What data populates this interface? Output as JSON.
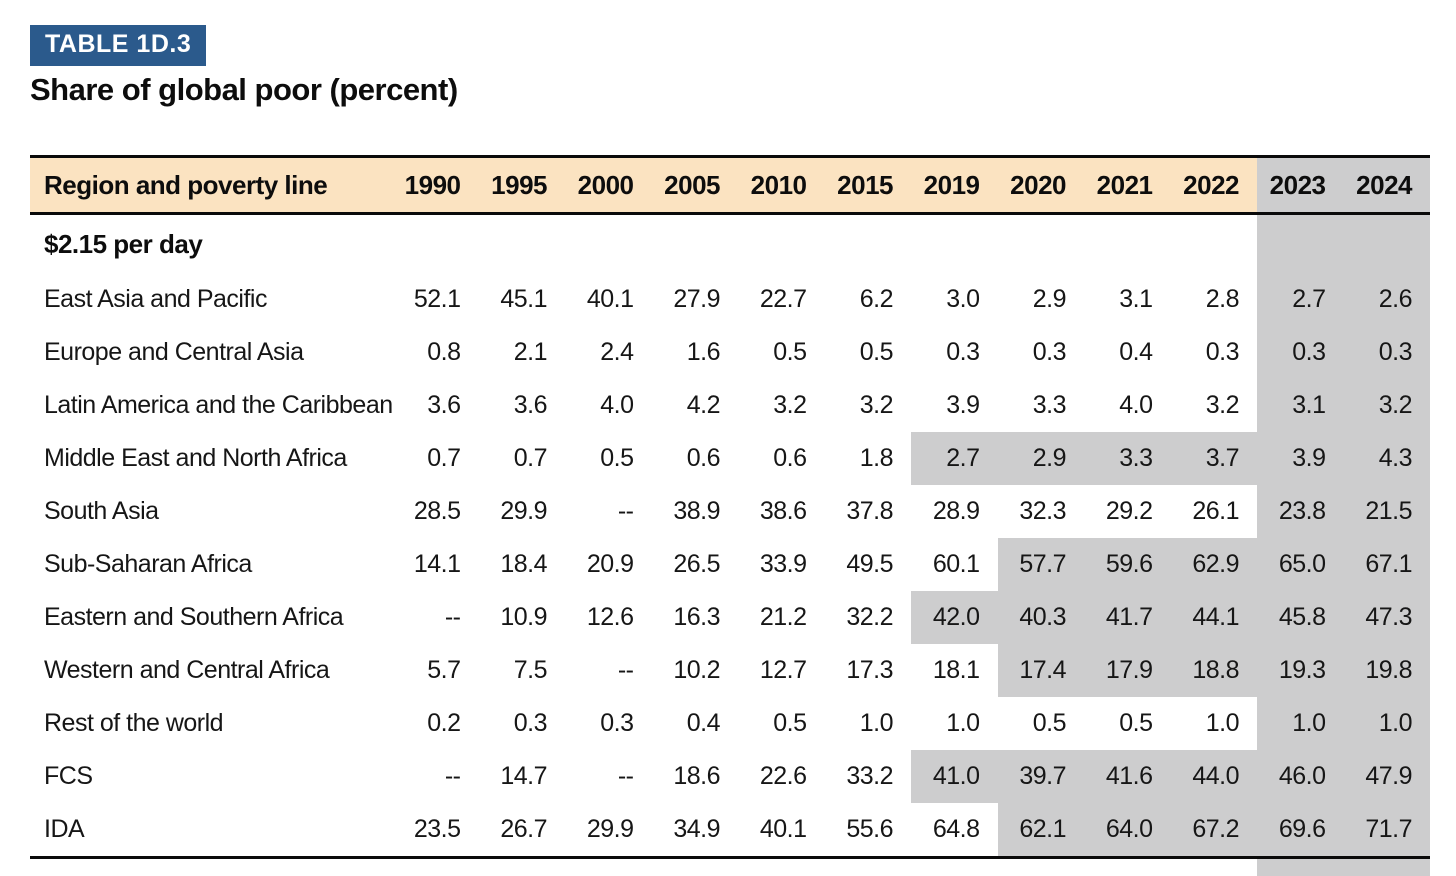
{
  "badge": {
    "label": "TABLE 1D.3"
  },
  "title": "Share of global poor (percent)",
  "colors": {
    "badge_bg": "#2B5A8C",
    "header_bg": "#FBE3C1",
    "highlight_bg": "#CDCDCE",
    "border": "#0a0a0a"
  },
  "table": {
    "header": {
      "label_col": "Region and poverty line",
      "years": [
        "1990",
        "1995",
        "2000",
        "2005",
        "2010",
        "2015",
        "2019",
        "2020",
        "2021",
        "2022",
        "2023",
        "2024"
      ]
    },
    "highlight_from_index": 10,
    "section": {
      "label": "$2.15 per day"
    },
    "rows": [
      {
        "label": "East Asia and Pacific",
        "gray_from_index": null,
        "values": [
          "52.1",
          "45.1",
          "40.1",
          "27.9",
          "22.7",
          "6.2",
          "3.0",
          "2.9",
          "3.1",
          "2.8",
          "2.7",
          "2.6"
        ]
      },
      {
        "label": "Europe and Central Asia",
        "gray_from_index": null,
        "values": [
          "0.8",
          "2.1",
          "2.4",
          "1.6",
          "0.5",
          "0.5",
          "0.3",
          "0.3",
          "0.4",
          "0.3",
          "0.3",
          "0.3"
        ]
      },
      {
        "label": "Latin America and the Caribbean",
        "gray_from_index": null,
        "values": [
          "3.6",
          "3.6",
          "4.0",
          "4.2",
          "3.2",
          "3.2",
          "3.9",
          "3.3",
          "4.0",
          "3.2",
          "3.1",
          "3.2"
        ]
      },
      {
        "label": "Middle East and North Africa",
        "gray_from_index": 6,
        "values": [
          "0.7",
          "0.7",
          "0.5",
          "0.6",
          "0.6",
          "1.8",
          "2.7",
          "2.9",
          "3.3",
          "3.7",
          "3.9",
          "4.3"
        ]
      },
      {
        "label": "South Asia",
        "gray_from_index": null,
        "values": [
          "28.5",
          "29.9",
          "--",
          "38.9",
          "38.6",
          "37.8",
          "28.9",
          "32.3",
          "29.2",
          "26.1",
          "23.8",
          "21.5"
        ]
      },
      {
        "label": "Sub-Saharan Africa",
        "gray_from_index": 7,
        "values": [
          "14.1",
          "18.4",
          "20.9",
          "26.5",
          "33.9",
          "49.5",
          "60.1",
          "57.7",
          "59.6",
          "62.9",
          "65.0",
          "67.1"
        ]
      },
      {
        "label": "Eastern and Southern Africa",
        "gray_from_index": 6,
        "values": [
          "--",
          "10.9",
          "12.6",
          "16.3",
          "21.2",
          "32.2",
          "42.0",
          "40.3",
          "41.7",
          "44.1",
          "45.8",
          "47.3"
        ]
      },
      {
        "label": "Western and Central Africa",
        "gray_from_index": 7,
        "values": [
          "5.7",
          "7.5",
          "--",
          "10.2",
          "12.7",
          "17.3",
          "18.1",
          "17.4",
          "17.9",
          "18.8",
          "19.3",
          "19.8"
        ]
      },
      {
        "label": "Rest of the world",
        "gray_from_index": null,
        "values": [
          "0.2",
          "0.3",
          "0.3",
          "0.4",
          "0.5",
          "1.0",
          "1.0",
          "0.5",
          "0.5",
          "1.0",
          "1.0",
          "1.0"
        ]
      },
      {
        "label": "FCS",
        "gray_from_index": 6,
        "values": [
          "--",
          "14.7",
          "--",
          "18.6",
          "22.6",
          "33.2",
          "41.0",
          "39.7",
          "41.6",
          "44.0",
          "46.0",
          "47.9"
        ]
      },
      {
        "label": "IDA",
        "gray_from_index": 7,
        "values": [
          "23.5",
          "26.7",
          "29.9",
          "34.9",
          "40.1",
          "55.6",
          "64.8",
          "62.1",
          "64.0",
          "67.2",
          "69.6",
          "71.7"
        ]
      }
    ]
  },
  "chart_data": {
    "type": "table",
    "title": "Share of global poor (percent)",
    "section": "$2.15 per day",
    "columns": [
      "Region and poverty line",
      "1990",
      "1995",
      "2000",
      "2005",
      "2010",
      "2015",
      "2019",
      "2020",
      "2021",
      "2022",
      "2023",
      "2024"
    ],
    "rows": [
      [
        "East Asia and Pacific",
        52.1,
        45.1,
        40.1,
        27.9,
        22.7,
        6.2,
        3.0,
        2.9,
        3.1,
        2.8,
        2.7,
        2.6
      ],
      [
        "Europe and Central Asia",
        0.8,
        2.1,
        2.4,
        1.6,
        0.5,
        0.5,
        0.3,
        0.3,
        0.4,
        0.3,
        0.3,
        0.3
      ],
      [
        "Latin America and the Caribbean",
        3.6,
        3.6,
        4.0,
        4.2,
        3.2,
        3.2,
        3.9,
        3.3,
        4.0,
        3.2,
        3.1,
        3.2
      ],
      [
        "Middle East and North Africa",
        0.7,
        0.7,
        0.5,
        0.6,
        0.6,
        1.8,
        2.7,
        2.9,
        3.3,
        3.7,
        3.9,
        4.3
      ],
      [
        "South Asia",
        28.5,
        29.9,
        null,
        38.9,
        38.6,
        37.8,
        28.9,
        32.3,
        29.2,
        26.1,
        23.8,
        21.5
      ],
      [
        "Sub-Saharan Africa",
        14.1,
        18.4,
        20.9,
        26.5,
        33.9,
        49.5,
        60.1,
        57.7,
        59.6,
        62.9,
        65.0,
        67.1
      ],
      [
        "Eastern and Southern Africa",
        null,
        10.9,
        12.6,
        16.3,
        21.2,
        32.2,
        42.0,
        40.3,
        41.7,
        44.1,
        45.8,
        47.3
      ],
      [
        "Western and Central Africa",
        5.7,
        7.5,
        null,
        10.2,
        12.7,
        17.3,
        18.1,
        17.4,
        17.9,
        18.8,
        19.3,
        19.8
      ],
      [
        "Rest of the world",
        0.2,
        0.3,
        0.3,
        0.4,
        0.5,
        1.0,
        1.0,
        0.5,
        0.5,
        1.0,
        1.0,
        1.0
      ],
      [
        "FCS",
        null,
        14.7,
        null,
        18.6,
        22.6,
        33.2,
        41.0,
        39.7,
        41.6,
        44.0,
        46.0,
        47.9
      ],
      [
        "IDA",
        23.5,
        26.7,
        29.9,
        34.9,
        40.1,
        55.6,
        64.8,
        62.1,
        64.0,
        67.2,
        69.6,
        71.7
      ]
    ]
  }
}
